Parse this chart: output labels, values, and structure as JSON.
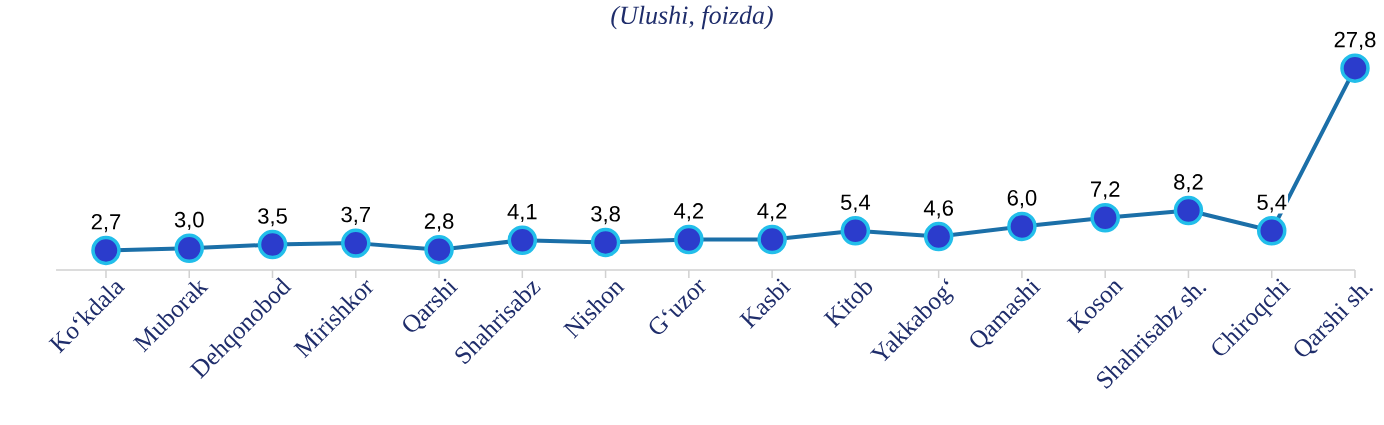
{
  "chart_data": {
    "type": "line",
    "title": "(Ulushi, foizda)",
    "categories": [
      "Ko‘kdala",
      "Muborak",
      "Dehqonobod",
      "Mirishkor",
      "Qarshi",
      "Shahrisabz",
      "Nishon",
      "G‘uzor",
      "Kasbi",
      "Kitob",
      "Yakkabog‘",
      "Qamashi",
      "Koson",
      "Shahrisabz sh.",
      "Chiroqchi",
      "Qarshi sh."
    ],
    "series": [
      {
        "color": "#1b6fa8",
        "values": [
          2.7,
          3.0,
          3.5,
          3.7,
          2.8,
          4.1,
          3.8,
          4.2,
          4.2,
          5.4,
          4.6,
          6.0,
          7.2,
          8.2,
          5.4,
          27.8
        ],
        "value_labels": [
          "2,7",
          "3,0",
          "3,5",
          "3,7",
          "2,8",
          "4,1",
          "3,8",
          "4,2",
          "4,2",
          "5,4",
          "4,6",
          "6,0",
          "7,2",
          "8,2",
          "5,4",
          "27,8"
        ]
      }
    ],
    "tick_labels": "x",
    "marker": "circle",
    "line_style": "solid"
  }
}
